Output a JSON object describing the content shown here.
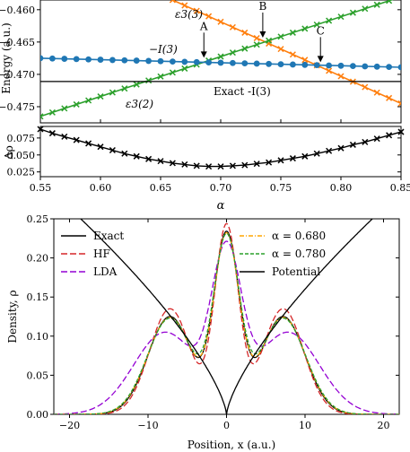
{
  "chart_data": [
    {
      "type": "line",
      "xlim": [
        0.55,
        0.85
      ],
      "ylim": [
        -0.4775,
        -0.4585
      ],
      "ylabel": "Energy (a.u.)",
      "yticks": [
        -0.46,
        -0.465,
        -0.47,
        -0.475
      ],
      "ytick_labels": [
        "−0.460",
        "−0.465",
        "−0.470",
        "−0.475"
      ],
      "grid": false,
      "series": [
        {
          "name": "ε3(3)",
          "color": "#ff7f0e",
          "marker": "x",
          "x": [
            0.66,
            0.85
          ],
          "y": [
            -0.4585,
            -0.4745
          ]
        },
        {
          "name": "ε3(2)",
          "color": "#2ca02c",
          "marker": "x",
          "x": [
            0.55,
            0.85
          ],
          "y": [
            -0.4765,
            -0.458
          ]
        },
        {
          "name": "−I(3)",
          "color": "#1f77b4",
          "marker": "o",
          "x": [
            0.55,
            0.85
          ],
          "y": [
            -0.4675,
            -0.4689
          ]
        },
        {
          "name": "Exact -I(3)",
          "color": "#000000",
          "marker": "",
          "x": [
            0.55,
            0.85
          ],
          "y": [
            -0.4711,
            -0.4711
          ]
        }
      ],
      "annotations": [
        {
          "label": "A",
          "x": 0.686,
          "y": -0.4677
        },
        {
          "label": "B",
          "x": 0.735,
          "y": -0.4646
        },
        {
          "label": "C",
          "x": 0.783,
          "y": -0.4684
        }
      ],
      "series_labels": {
        "e3_3": "ε3(3)",
        "e3_2": "ε3(2)",
        "mI3": "−I(3)",
        "exact": "Exact -I(3)"
      }
    },
    {
      "type": "line",
      "xlim": [
        0.55,
        0.85
      ],
      "ylim": [
        0.018,
        0.092
      ],
      "xlabel": "α",
      "ylabel": "Δρ",
      "xticks": [
        0.55,
        0.6,
        0.65,
        0.7,
        0.75,
        0.8,
        0.85
      ],
      "xtick_labels": [
        "0.55",
        "0.60",
        "0.65",
        "0.70",
        "0.75",
        "0.80",
        "0.85"
      ],
      "yticks": [
        0.025,
        0.05,
        0.075
      ],
      "ytick_labels": [
        "0.025",
        "0.050",
        "0.075"
      ],
      "series": [
        {
          "name": "Δρ",
          "color": "#000000",
          "marker": "x",
          "x": [
            0.55,
            0.56,
            0.57,
            0.58,
            0.59,
            0.6,
            0.61,
            0.62,
            0.63,
            0.64,
            0.65,
            0.66,
            0.67,
            0.68,
            0.69,
            0.7,
            0.71,
            0.72,
            0.73,
            0.74,
            0.75,
            0.76,
            0.77,
            0.78,
            0.79,
            0.8,
            0.81,
            0.82,
            0.83,
            0.84,
            0.85
          ],
          "y": [
            0.088,
            0.082,
            0.077,
            0.072,
            0.067,
            0.062,
            0.057,
            0.052,
            0.048,
            0.044,
            0.041,
            0.038,
            0.036,
            0.034,
            0.033,
            0.033,
            0.034,
            0.035,
            0.037,
            0.039,
            0.042,
            0.045,
            0.048,
            0.052,
            0.056,
            0.06,
            0.065,
            0.069,
            0.074,
            0.079,
            0.084
          ]
        }
      ]
    },
    {
      "type": "line",
      "xlim": [
        -22,
        22
      ],
      "ylim": [
        0,
        0.25
      ],
      "xlabel": "Position, x (a.u.)",
      "ylabel": "Density, ρ",
      "xticks": [
        -20,
        -10,
        0,
        10,
        20
      ],
      "xtick_labels": [
        "−20",
        "−10",
        "0",
        "10",
        "20"
      ],
      "yticks": [
        0.0,
        0.05,
        0.1,
        0.15,
        0.2,
        0.25
      ],
      "ytick_labels": [
        "0.00",
        "0.05",
        "0.10",
        "0.15",
        "0.20",
        "0.25"
      ],
      "legend_placement": "top",
      "series": [
        {
          "name": "Exact",
          "color": "#000000",
          "dash": "",
          "params": {
            "A0": 0.225,
            "s0": 1.6,
            "A1": 0.125,
            "mu": 7.2,
            "s1": 2.8
          }
        },
        {
          "name": "HF",
          "color": "#d62728",
          "dash": "7,3",
          "params": {
            "A0": 0.238,
            "s0": 1.5,
            "A1": 0.135,
            "mu": 7.2,
            "s1": 2.6
          }
        },
        {
          "name": "LDA",
          "color": "#9400d3",
          "dash": "7,3",
          "params": {
            "A0": 0.19,
            "s0": 1.9,
            "A1": 0.105,
            "mu": 7.8,
            "s1": 4.0
          }
        },
        {
          "name": "α = 0.680",
          "color": "#ffa500",
          "dash": "5,2,1,2",
          "params": {
            "A0": 0.222,
            "s0": 1.6,
            "A1": 0.124,
            "mu": 7.2,
            "s1": 2.85
          }
        },
        {
          "name": "α = 0.780",
          "color": "#2ca02c",
          "dash": "4,2",
          "params": {
            "A0": 0.22,
            "s0": 1.65,
            "A1": 0.123,
            "mu": 7.2,
            "s1": 2.9
          }
        },
        {
          "name": "Potential",
          "color": "#000000",
          "dash": "",
          "params": {
            "k": 0.0305,
            "p": 0.72
          }
        }
      ]
    }
  ]
}
